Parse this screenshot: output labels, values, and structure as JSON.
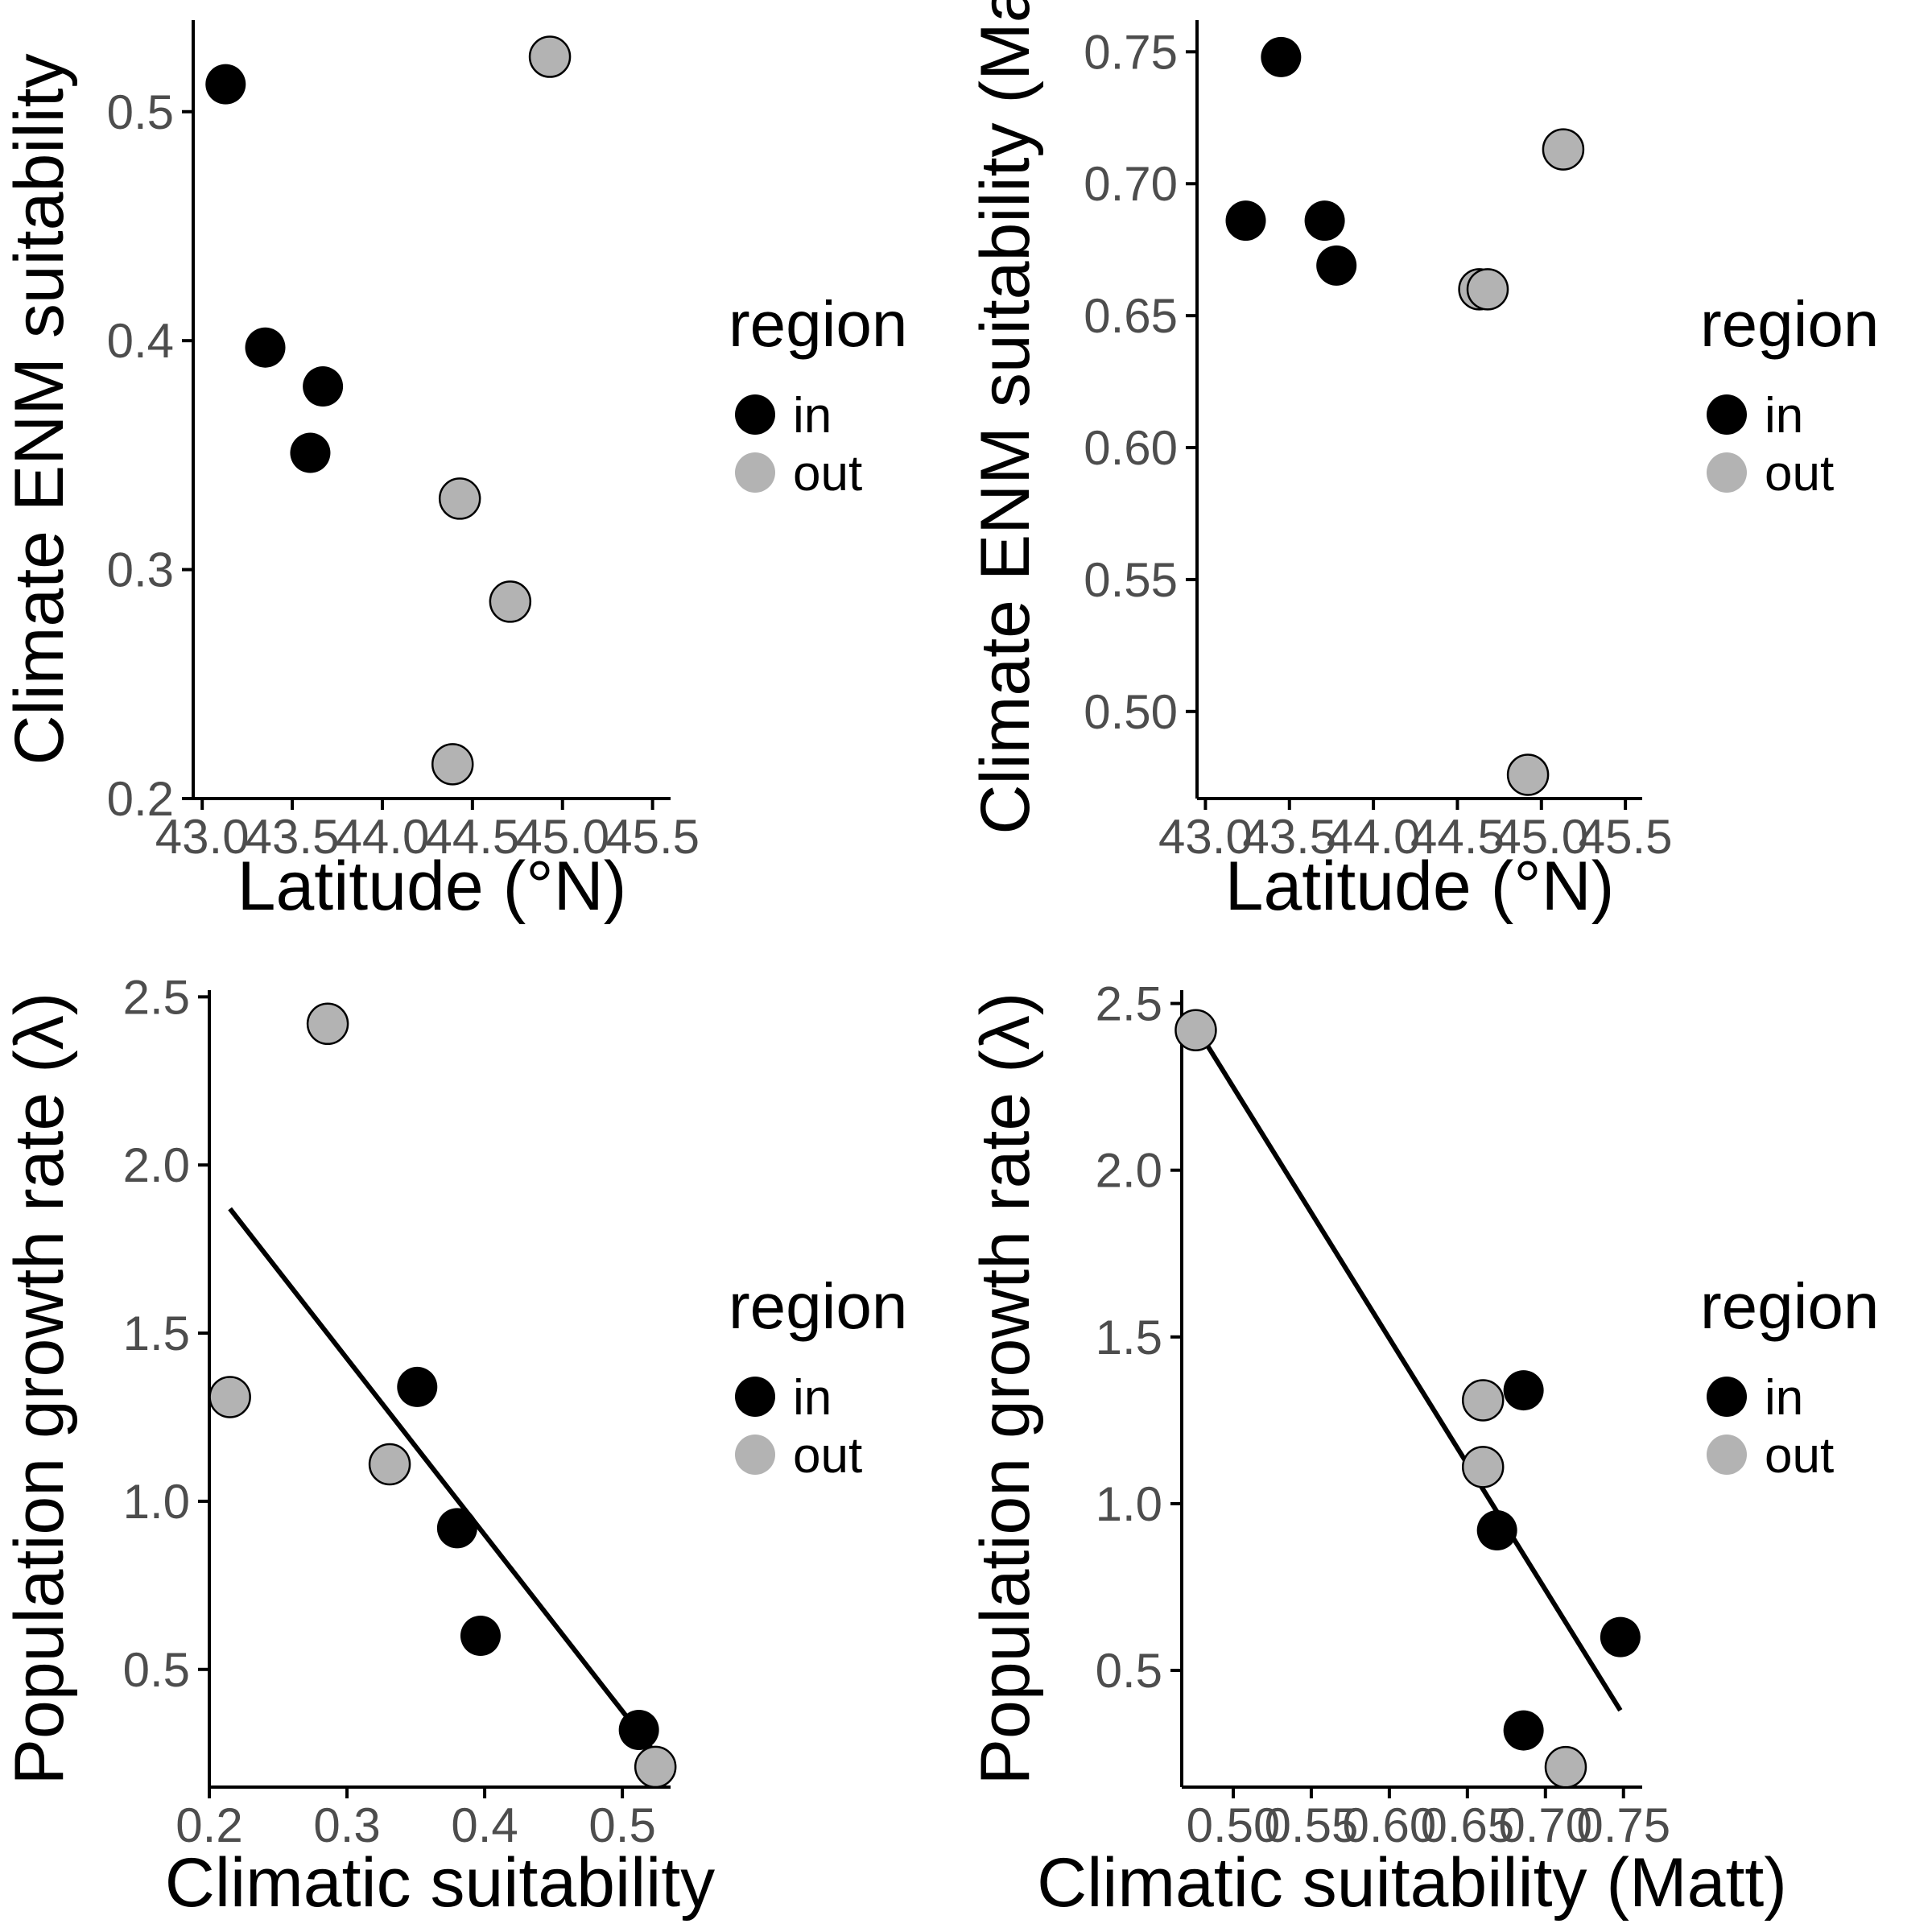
{
  "colors": {
    "in": "#000000",
    "out": "#b3b3b3",
    "axis": "#000000",
    "tick_text": "#4d4d4d",
    "fit_line": "#000000",
    "background": "#ffffff"
  },
  "legend": {
    "title": "region",
    "items": [
      {
        "key": "in",
        "label": "in"
      },
      {
        "key": "out",
        "label": "out"
      }
    ]
  },
  "chart_data": [
    {
      "type": "scatter",
      "xlabel": "Latitude (°N)",
      "ylabel": "Climate ENM suitability",
      "xlim": [
        42.95,
        45.6
      ],
      "ylim": [
        0.2,
        0.54
      ],
      "xticks": [
        43.0,
        43.5,
        44.0,
        44.5,
        45.0,
        45.5
      ],
      "xtick_labels": [
        "43.0",
        "43.5",
        "44.0",
        "44.5",
        "45.0",
        "45.5"
      ],
      "yticks": [
        0.2,
        0.3,
        0.4,
        0.5
      ],
      "ytick_labels": [
        "0.2",
        "0.3",
        "0.4",
        "0.5"
      ],
      "grid": false,
      "legend_position": "right",
      "series": [
        {
          "name": "in",
          "points": [
            {
              "x": 43.13,
              "y": 0.512
            },
            {
              "x": 43.35,
              "y": 0.397
            },
            {
              "x": 43.67,
              "y": 0.38
            },
            {
              "x": 43.6,
              "y": 0.351
            }
          ]
        },
        {
          "name": "out",
          "points": [
            {
              "x": 44.93,
              "y": 0.524
            },
            {
              "x": 44.43,
              "y": 0.331
            },
            {
              "x": 44.71,
              "y": 0.286
            },
            {
              "x": 44.39,
              "y": 0.215
            }
          ]
        }
      ],
      "fit_line": null
    },
    {
      "type": "scatter",
      "xlabel": "Latitude (°N)",
      "ylabel": "Climate ENM suitability (Ma",
      "xlim": [
        42.95,
        45.6
      ],
      "ylim": [
        0.467,
        0.762
      ],
      "xticks": [
        43.0,
        43.5,
        44.0,
        44.5,
        45.0,
        45.5
      ],
      "xtick_labels": [
        "43.0",
        "43.5",
        "44.0",
        "44.5",
        "45.0",
        "45.5"
      ],
      "yticks": [
        0.5,
        0.55,
        0.6,
        0.65,
        0.7,
        0.75
      ],
      "ytick_labels": [
        "0.50",
        "0.55",
        "0.60",
        "0.65",
        "0.70",
        "0.75"
      ],
      "grid": false,
      "legend_position": "right",
      "series": [
        {
          "name": "in",
          "points": [
            {
              "x": 43.45,
              "y": 0.748
            },
            {
              "x": 43.24,
              "y": 0.686
            },
            {
              "x": 43.71,
              "y": 0.686
            },
            {
              "x": 43.78,
              "y": 0.669
            }
          ]
        },
        {
          "name": "out",
          "points": [
            {
              "x": 45.13,
              "y": 0.713
            },
            {
              "x": 44.63,
              "y": 0.66
            },
            {
              "x": 44.68,
              "y": 0.66
            },
            {
              "x": 44.92,
              "y": 0.476
            }
          ]
        }
      ],
      "fit_line": null
    },
    {
      "type": "scatter",
      "xlabel": "Climatic suitability",
      "ylabel": "Population growth rate (λ)",
      "xlim": [
        0.2,
        0.535
      ],
      "ylim": [
        0.15,
        2.52
      ],
      "xticks": [
        0.2,
        0.3,
        0.4,
        0.5
      ],
      "xtick_labels": [
        "0.2",
        "0.3",
        "0.4",
        "0.5"
      ],
      "yticks": [
        0.5,
        1.0,
        1.5,
        2.0,
        2.5
      ],
      "ytick_labels": [
        "0.5",
        "1.0",
        "1.5",
        "2.0",
        "2.5"
      ],
      "grid": false,
      "legend_position": "right",
      "series": [
        {
          "name": "in",
          "points": [
            {
              "x": 0.351,
              "y": 1.34
            },
            {
              "x": 0.38,
              "y": 0.92
            },
            {
              "x": 0.397,
              "y": 0.6
            },
            {
              "x": 0.512,
              "y": 0.32
            }
          ]
        },
        {
          "name": "out",
          "points": [
            {
              "x": 0.286,
              "y": 2.42
            },
            {
              "x": 0.215,
              "y": 1.31
            },
            {
              "x": 0.331,
              "y": 1.11
            },
            {
              "x": 0.524,
              "y": 0.21
            }
          ]
        }
      ],
      "fit_line": {
        "x": [
          0.215,
          0.524
        ],
        "y": [
          1.87,
          0.25
        ]
      }
    },
    {
      "type": "scatter",
      "xlabel": "Climatic suitability (Matt)",
      "ylabel": "Population growth rate (λ)",
      "xlim": [
        0.467,
        0.762
      ],
      "ylim": [
        0.15,
        2.54
      ],
      "xticks": [
        0.5,
        0.55,
        0.6,
        0.65,
        0.7,
        0.75
      ],
      "xtick_labels": [
        "0.50",
        "0.55",
        "0.60",
        "0.65",
        "0.70",
        "0.75"
      ],
      "yticks": [
        0.5,
        1.0,
        1.5,
        2.0,
        2.5
      ],
      "ytick_labels": [
        "0.5",
        "1.0",
        "1.5",
        "2.0",
        "2.5"
      ],
      "grid": false,
      "legend_position": "right",
      "series": [
        {
          "name": "in",
          "points": [
            {
              "x": 0.686,
              "y": 1.34
            },
            {
              "x": 0.669,
              "y": 0.92
            },
            {
              "x": 0.748,
              "y": 0.6
            },
            {
              "x": 0.686,
              "y": 0.32
            }
          ]
        },
        {
          "name": "out",
          "points": [
            {
              "x": 0.476,
              "y": 2.42
            },
            {
              "x": 0.66,
              "y": 1.31
            },
            {
              "x": 0.66,
              "y": 1.11
            },
            {
              "x": 0.713,
              "y": 0.21
            }
          ]
        }
      ],
      "fit_line": {
        "x": [
          0.476,
          0.748
        ],
        "y": [
          2.43,
          0.38
        ]
      }
    }
  ]
}
